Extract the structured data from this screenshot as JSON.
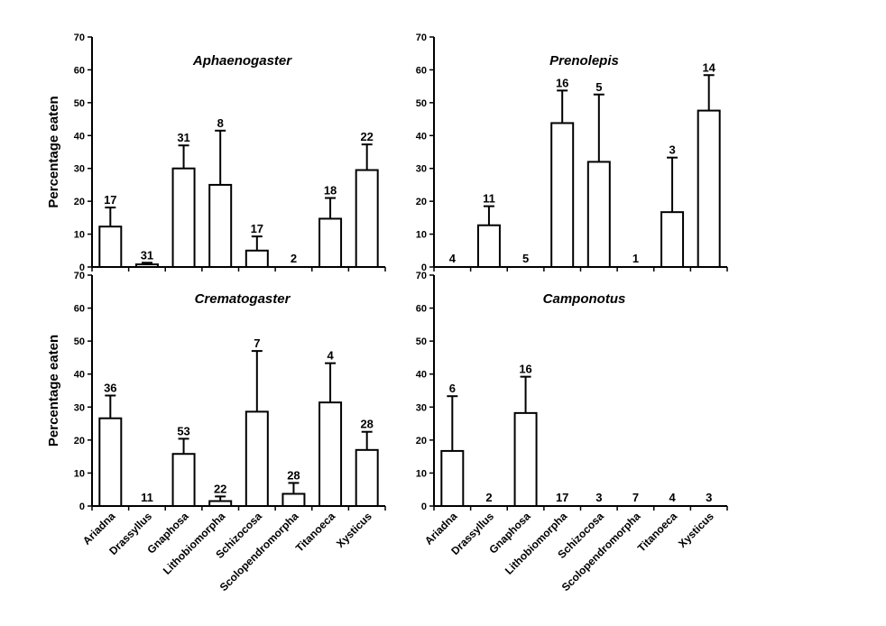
{
  "figure": {
    "categories": [
      "Ariadna",
      "Drassyllus",
      "Gnaphosa",
      "Lithobiomorpha",
      "Schizocosa",
      "Scolopendromorpha",
      "Titanoeca",
      "Xysticus"
    ],
    "y_ticks": [
      "0",
      "10",
      "20",
      "30",
      "40",
      "50",
      "60",
      "70"
    ]
  },
  "chart_data": [
    {
      "type": "bar",
      "title": "Aphaenogaster",
      "ylabel": "Percentage eaten",
      "xlabel": "",
      "ylim": [
        0,
        70
      ],
      "categories": [
        "Ariadna",
        "Drassyllus",
        "Gnaphosa",
        "Lithobiomorpha",
        "Schizocosa",
        "Scolopendromorpha",
        "Titanoeca",
        "Xysticus"
      ],
      "values": [
        12.3,
        0.8,
        30,
        25,
        5,
        0,
        14.7,
        29.5
      ],
      "errors": [
        5.8,
        0.5,
        7,
        16.5,
        4.3,
        0,
        6.3,
        7.8
      ],
      "n_labels": [
        "17",
        "31",
        "31",
        "8",
        "17",
        "2",
        "18",
        "22"
      ]
    },
    {
      "type": "bar",
      "title": "Prenolepis",
      "ylabel": "",
      "xlabel": "",
      "ylim": [
        0,
        70
      ],
      "categories": [
        "Ariadna",
        "Drassyllus",
        "Gnaphosa",
        "Lithobiomorpha",
        "Schizocosa",
        "Scolopendromorpha",
        "Titanoeca",
        "Xysticus"
      ],
      "values": [
        0,
        12.7,
        0,
        43.8,
        32,
        0,
        16.7,
        47.6
      ],
      "errors": [
        0,
        5.8,
        0,
        9.9,
        20.5,
        0,
        16.6,
        10.8
      ],
      "n_labels": [
        "4",
        "11",
        "5",
        "16",
        "5",
        "1",
        "3",
        "14"
      ]
    },
    {
      "type": "bar",
      "title": "Crematogaster",
      "ylabel": "Percentage eaten",
      "xlabel": "",
      "ylim": [
        0,
        70
      ],
      "categories": [
        "Ariadna",
        "Drassyllus",
        "Gnaphosa",
        "Lithobiomorpha",
        "Schizocosa",
        "Scolopendromorpha",
        "Titanoeca",
        "Xysticus"
      ],
      "values": [
        26.6,
        0,
        15.8,
        1.5,
        28.6,
        3.7,
        31.4,
        17
      ],
      "errors": [
        6.9,
        0,
        4.6,
        1.4,
        18.4,
        3.3,
        11.9,
        5.5
      ],
      "n_labels": [
        "36",
        "11",
        "53",
        "22",
        "7",
        "28",
        "4",
        "28"
      ]
    },
    {
      "type": "bar",
      "title": "Camponotus",
      "ylabel": "",
      "xlabel": "",
      "ylim": [
        0,
        70
      ],
      "categories": [
        "Ariadna",
        "Drassyllus",
        "Gnaphosa",
        "Lithobiomorpha",
        "Schizocosa",
        "Scolopendromorpha",
        "Titanoeca",
        "Xysticus"
      ],
      "values": [
        16.7,
        0,
        28.2,
        0,
        0,
        0,
        0,
        0
      ],
      "errors": [
        16.6,
        0,
        11,
        0,
        0,
        0,
        0,
        0
      ],
      "n_labels": [
        "6",
        "2",
        "16",
        "17",
        "3",
        "7",
        "4",
        "3"
      ]
    }
  ]
}
